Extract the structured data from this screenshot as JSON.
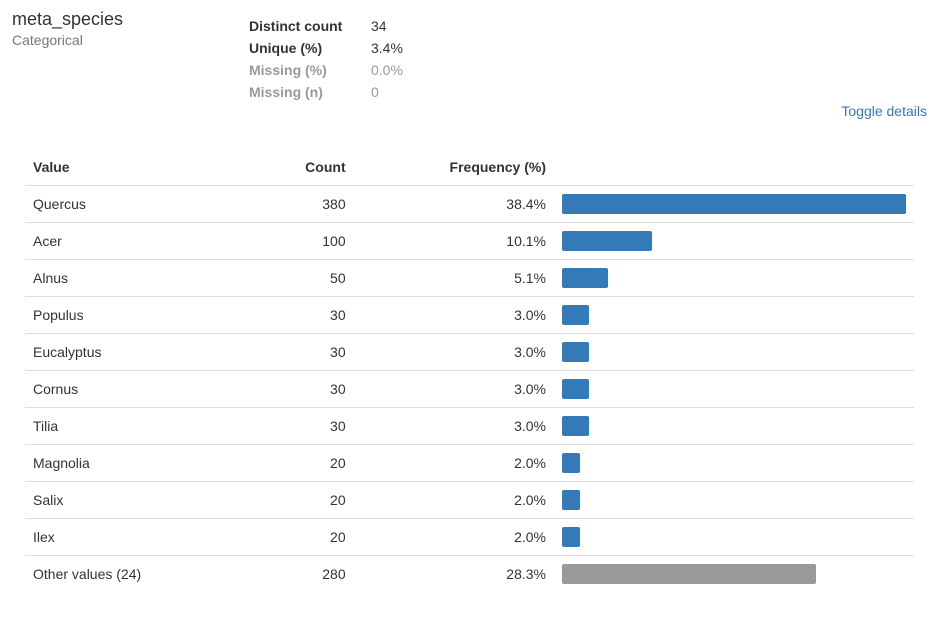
{
  "variable": {
    "name": "meta_species",
    "type": "Categorical"
  },
  "stats": [
    {
      "label": "Distinct count",
      "value": "34",
      "muted": false
    },
    {
      "label": "Unique (%)",
      "value": "3.4%",
      "muted": false
    },
    {
      "label": "Missing (%)",
      "value": "0.0%",
      "muted": true
    },
    {
      "label": "Missing (n)",
      "value": "0",
      "muted": true
    }
  ],
  "toggle_label": "Toggle details",
  "table": {
    "headers": {
      "value": "Value",
      "count": "Count",
      "frequency": "Frequency (%)"
    },
    "rows": [
      {
        "value": "Quercus",
        "count": "380",
        "frequency": "38.4%",
        "pct": 38.4,
        "other": false
      },
      {
        "value": "Acer",
        "count": "100",
        "frequency": "10.1%",
        "pct": 10.1,
        "other": false
      },
      {
        "value": "Alnus",
        "count": "50",
        "frequency": "5.1%",
        "pct": 5.1,
        "other": false
      },
      {
        "value": "Populus",
        "count": "30",
        "frequency": "3.0%",
        "pct": 3.0,
        "other": false
      },
      {
        "value": "Eucalyptus",
        "count": "30",
        "frequency": "3.0%",
        "pct": 3.0,
        "other": false
      },
      {
        "value": "Cornus",
        "count": "30",
        "frequency": "3.0%",
        "pct": 3.0,
        "other": false
      },
      {
        "value": "Tilia",
        "count": "30",
        "frequency": "3.0%",
        "pct": 3.0,
        "other": false
      },
      {
        "value": "Magnolia",
        "count": "20",
        "frequency": "2.0%",
        "pct": 2.0,
        "other": false
      },
      {
        "value": "Salix",
        "count": "20",
        "frequency": "2.0%",
        "pct": 2.0,
        "other": false
      },
      {
        "value": "Ilex",
        "count": "20",
        "frequency": "2.0%",
        "pct": 2.0,
        "other": false
      },
      {
        "value": "Other values (24)",
        "count": "280",
        "frequency": "28.3%",
        "pct": 28.3,
        "other": true
      }
    ]
  },
  "colors": {
    "bar": "#337ab7",
    "bar_other": "#999999",
    "link": "#337ab7"
  }
}
